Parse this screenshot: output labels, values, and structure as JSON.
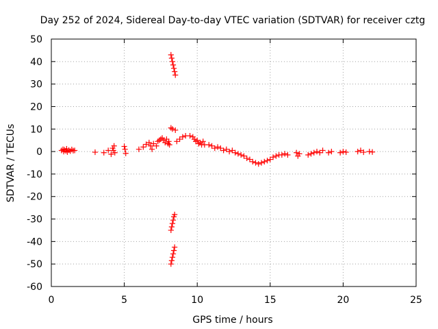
{
  "chart_data": {
    "type": "scatter",
    "title": "Day 252 of 2024, Sidereal Day-to-day VTEC variation (SDTVAR) for receiver cztg",
    "xlabel": "GPS time / hours",
    "ylabel": "SDTVAR / TECUs",
    "xlim": [
      0,
      25
    ],
    "ylim": [
      -60,
      50
    ],
    "xticks": [
      0,
      5,
      10,
      15,
      20,
      25
    ],
    "xtick_labels": [
      "0",
      "5",
      "10",
      "15",
      "20",
      "25"
    ],
    "yticks": [
      50,
      40,
      30,
      20,
      10,
      0,
      -10,
      -20,
      -30,
      -40,
      -50,
      -60
    ],
    "ytick_labels": [
      "50",
      "40",
      "30",
      "20",
      "10",
      "0",
      "-10",
      "-20",
      "-30",
      "-40",
      "-50",
      "-60"
    ],
    "grid": true,
    "marker": "+",
    "marker_color": "#ff0000",
    "series": [
      {
        "name": "SDTVAR",
        "points": [
          [
            0.7,
            0.5
          ],
          [
            0.8,
            1.0
          ],
          [
            0.85,
            0.0
          ],
          [
            0.9,
            0.8
          ],
          [
            1.0,
            0.3
          ],
          [
            1.05,
            1.2
          ],
          [
            1.1,
            -0.2
          ],
          [
            1.2,
            0.6
          ],
          [
            1.3,
            0.2
          ],
          [
            1.4,
            0.9
          ],
          [
            1.5,
            0.4
          ],
          [
            1.6,
            0.5
          ],
          [
            3.0,
            -0.3
          ],
          [
            3.6,
            -0.5
          ],
          [
            3.9,
            0.5
          ],
          [
            4.1,
            -1.2
          ],
          [
            4.2,
            1.5
          ],
          [
            4.25,
            0.5
          ],
          [
            4.3,
            2.5
          ],
          [
            4.35,
            -0.5
          ],
          [
            5.0,
            2.3
          ],
          [
            5.05,
            1.0
          ],
          [
            5.1,
            -0.8
          ],
          [
            6.0,
            1.0
          ],
          [
            6.3,
            2.0
          ],
          [
            6.5,
            3.2
          ],
          [
            6.7,
            4.0
          ],
          [
            6.8,
            2.5
          ],
          [
            6.9,
            1.0
          ],
          [
            7.0,
            3.5
          ],
          [
            7.2,
            2.5
          ],
          [
            7.3,
            4.5
          ],
          [
            7.4,
            5.0
          ],
          [
            7.5,
            5.5
          ],
          [
            7.6,
            6.0
          ],
          [
            7.7,
            5.0
          ],
          [
            7.8,
            4.0
          ],
          [
            7.9,
            5.5
          ],
          [
            8.0,
            3.5
          ],
          [
            8.05,
            4.5
          ],
          [
            8.1,
            3.0
          ],
          [
            8.2,
            43.0
          ],
          [
            8.25,
            41.5
          ],
          [
            8.3,
            40.0
          ],
          [
            8.35,
            38.5
          ],
          [
            8.4,
            37.0
          ],
          [
            8.45,
            35.5
          ],
          [
            8.5,
            34.0
          ],
          [
            8.2,
            10.5
          ],
          [
            8.3,
            10.0
          ],
          [
            8.5,
            9.5
          ],
          [
            8.6,
            4.5
          ],
          [
            8.8,
            5.5
          ],
          [
            9.0,
            6.5
          ],
          [
            9.2,
            7.0
          ],
          [
            9.5,
            7.0
          ],
          [
            9.7,
            6.5
          ],
          [
            9.8,
            5.5
          ],
          [
            9.9,
            4.5
          ],
          [
            10.0,
            5.0
          ],
          [
            10.1,
            3.5
          ],
          [
            10.2,
            4.0
          ],
          [
            10.3,
            3.0
          ],
          [
            10.4,
            4.5
          ],
          [
            10.5,
            3.0
          ],
          [
            10.8,
            3.0
          ],
          [
            11.0,
            2.5
          ],
          [
            11.2,
            1.5
          ],
          [
            11.4,
            2.0
          ],
          [
            11.6,
            1.5
          ],
          [
            11.8,
            0.5
          ],
          [
            12.0,
            1.0
          ],
          [
            12.2,
            0.0
          ],
          [
            12.4,
            0.5
          ],
          [
            12.6,
            -0.5
          ],
          [
            12.8,
            -1.0
          ],
          [
            13.0,
            -1.5
          ],
          [
            13.2,
            -2.0
          ],
          [
            13.4,
            -3.0
          ],
          [
            13.6,
            -3.5
          ],
          [
            13.8,
            -4.5
          ],
          [
            14.0,
            -5.0
          ],
          [
            14.2,
            -5.5
          ],
          [
            14.4,
            -5.0
          ],
          [
            14.6,
            -4.5
          ],
          [
            14.8,
            -4.0
          ],
          [
            15.0,
            -3.5
          ],
          [
            15.2,
            -2.5
          ],
          [
            15.4,
            -2.0
          ],
          [
            15.6,
            -1.5
          ],
          [
            15.8,
            -1.5
          ],
          [
            16.0,
            -1.0
          ],
          [
            16.2,
            -1.5
          ],
          [
            16.8,
            -0.5
          ],
          [
            16.9,
            -2.0
          ],
          [
            17.0,
            -1.0
          ],
          [
            17.6,
            -1.5
          ],
          [
            17.8,
            -1.0
          ],
          [
            18.0,
            -0.5
          ],
          [
            18.2,
            0.0
          ],
          [
            18.4,
            -0.5
          ],
          [
            18.6,
            0.5
          ],
          [
            19.0,
            -0.5
          ],
          [
            19.2,
            0.0
          ],
          [
            19.8,
            -0.5
          ],
          [
            20.0,
            0.0
          ],
          [
            20.2,
            -0.3
          ],
          [
            21.0,
            0.0
          ],
          [
            21.2,
            0.5
          ],
          [
            21.4,
            -0.3
          ],
          [
            21.8,
            0.0
          ],
          [
            22.0,
            -0.2
          ],
          [
            8.2,
            -35.0
          ],
          [
            8.25,
            -33.5
          ],
          [
            8.3,
            -32.0
          ],
          [
            8.35,
            -30.5
          ],
          [
            8.4,
            -29.0
          ],
          [
            8.45,
            -28.0
          ],
          [
            8.2,
            -50.0
          ],
          [
            8.25,
            -48.5
          ],
          [
            8.3,
            -47.0
          ],
          [
            8.35,
            -45.5
          ],
          [
            8.4,
            -44.0
          ],
          [
            8.45,
            -42.5
          ]
        ]
      }
    ]
  }
}
